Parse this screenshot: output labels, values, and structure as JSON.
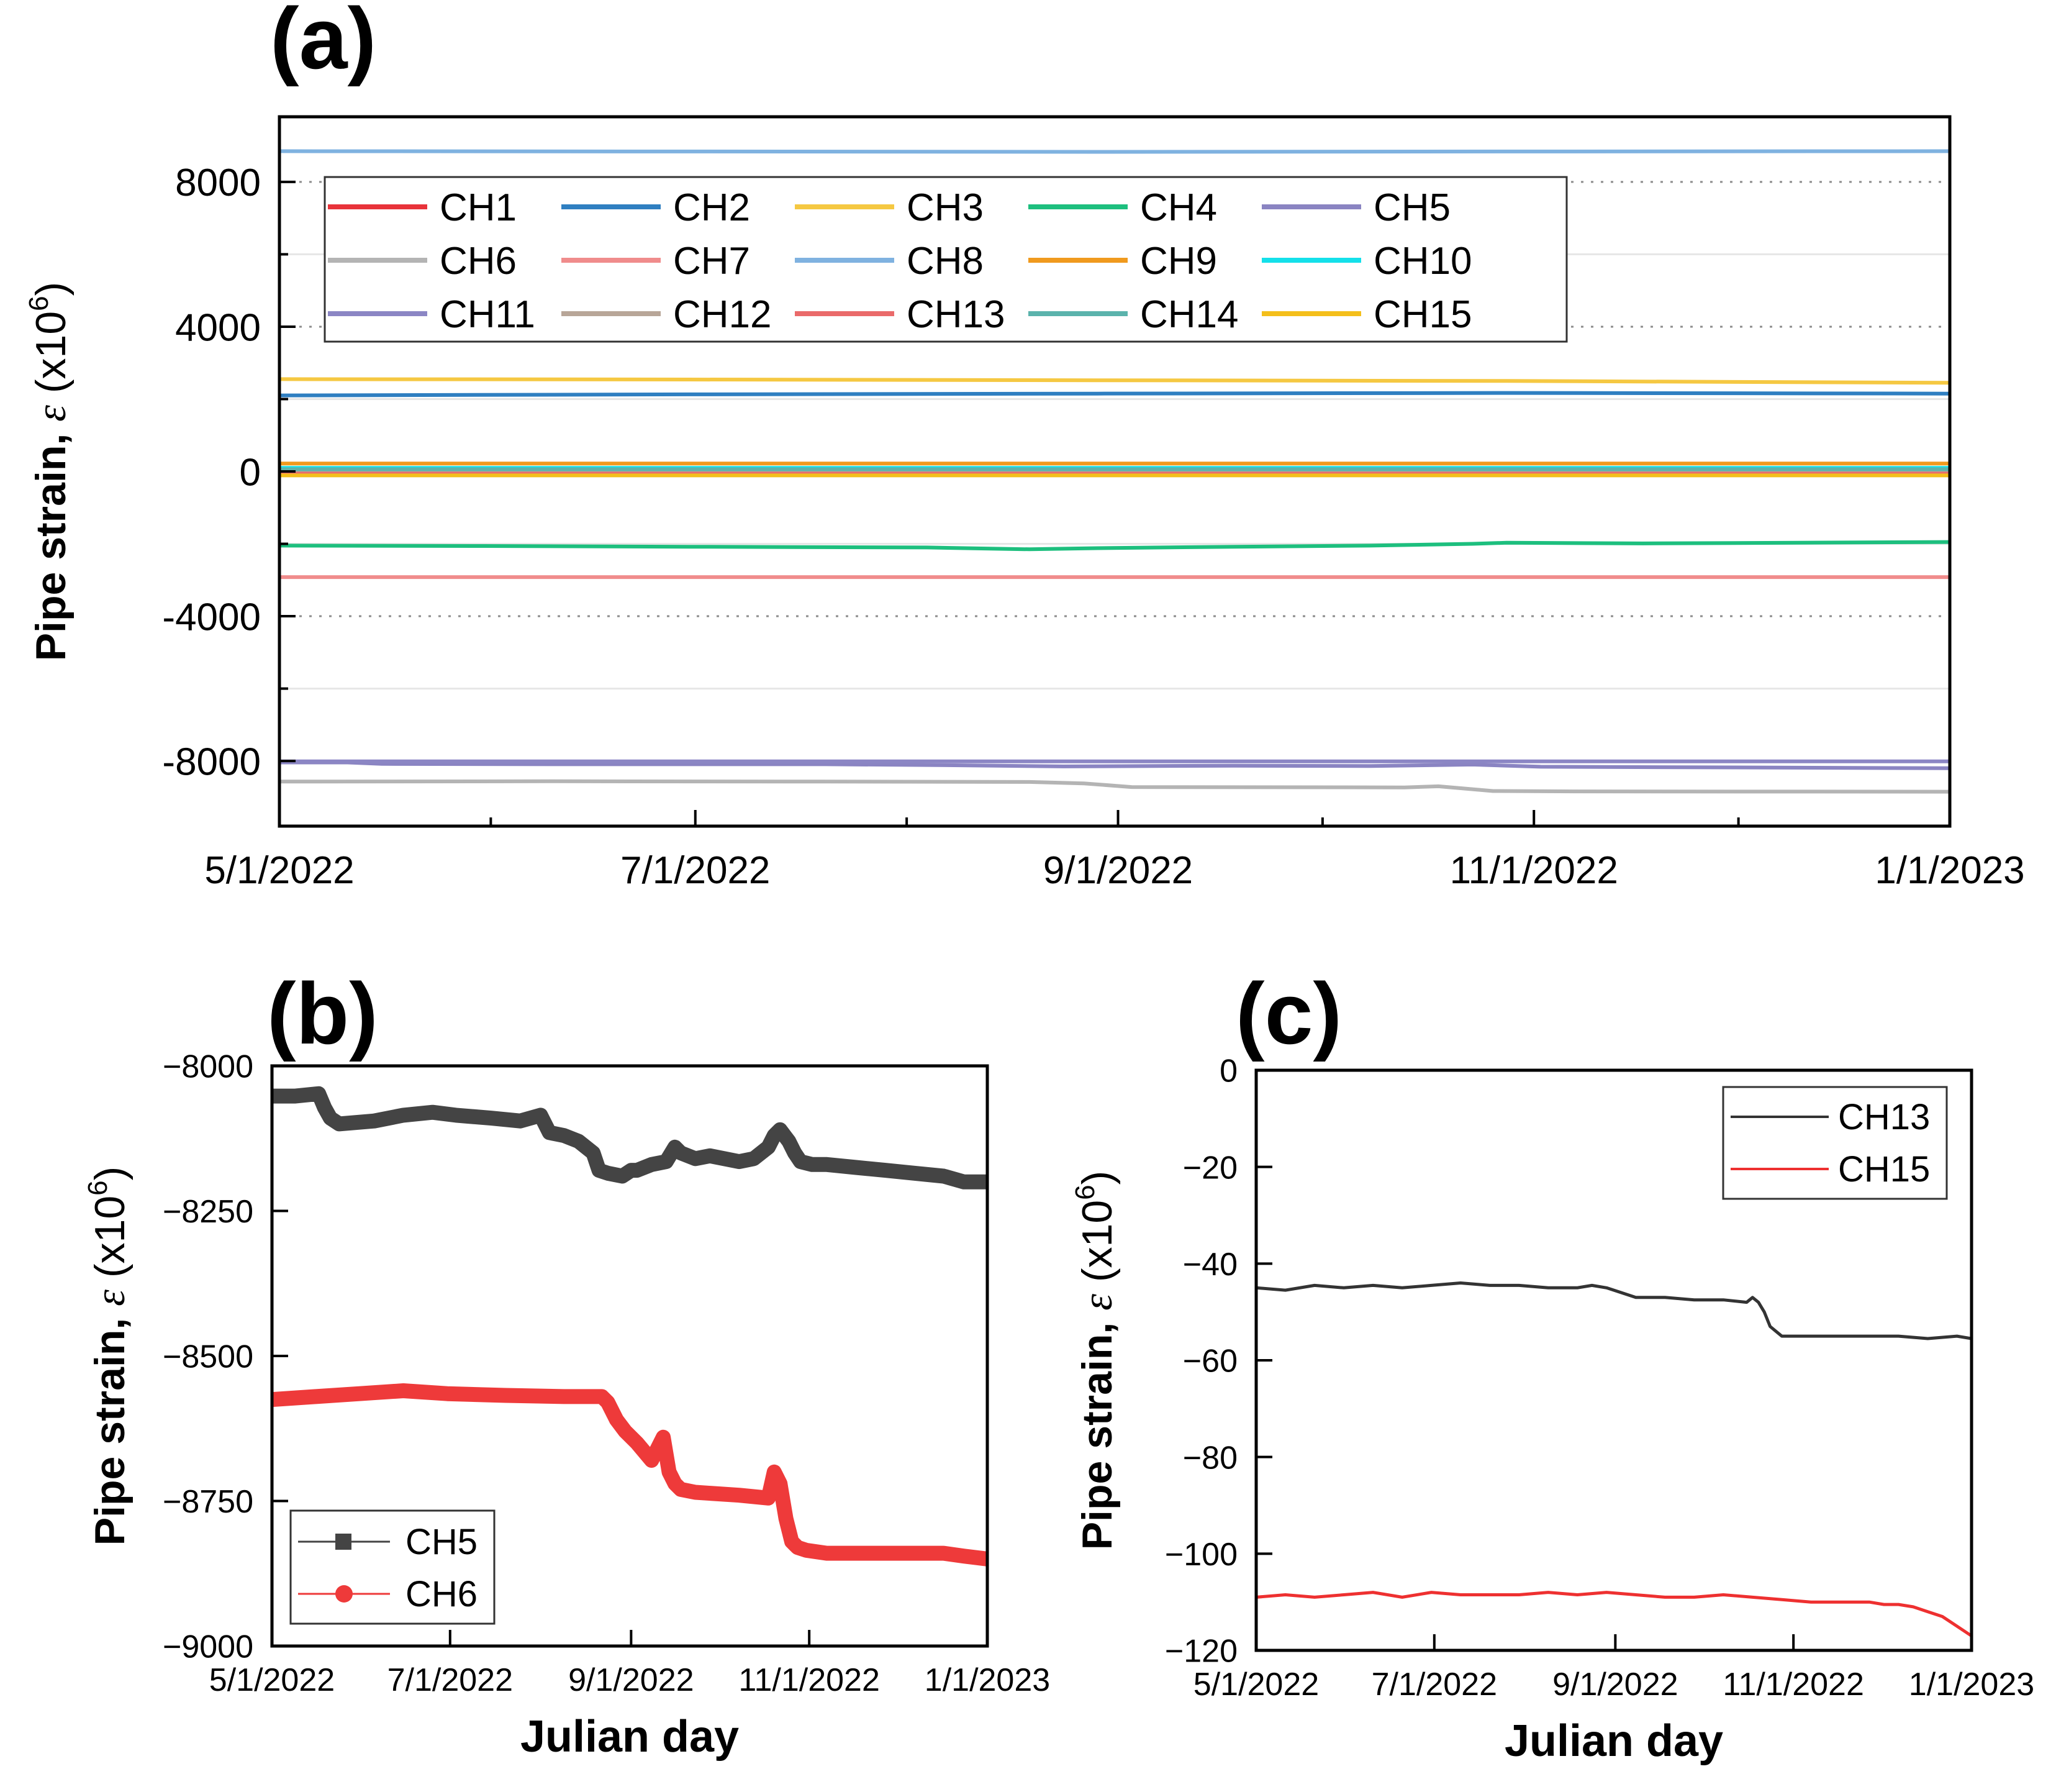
{
  "chart_data": [
    {
      "panel_label": "(a)",
      "type": "line",
      "xlabel": "",
      "ylabel_main": "Pipe strain, ",
      "ylabel_symbol": "ε",
      "ylabel_unit": " (x10",
      "ylabel_exp": "6",
      "ylabel_close": ")",
      "xlim": [
        0,
        245
      ],
      "ylim": [
        -9800,
        9800
      ],
      "x_ticks": [
        0,
        61,
        123,
        184,
        245
      ],
      "x_tick_labels": [
        "5/1/2022",
        "7/1/2022",
        "9/1/2022",
        "11/1/2022",
        "1/1/2023"
      ],
      "x_minor_ticks": [
        31,
        92,
        153,
        214
      ],
      "y_ticks": [
        -8000,
        -4000,
        0,
        4000,
        8000
      ],
      "y_tick_labels": [
        "-8000",
        "-4000",
        "0",
        "4000",
        "8000"
      ],
      "y_minor_ticks": [
        -6000,
        -2000,
        2000,
        6000
      ],
      "dotted_grid": [
        -8000,
        -4000,
        4000,
        8000
      ],
      "light_grid": [
        -6000,
        -2000,
        2000,
        6000
      ],
      "legend_position": "top-left",
      "legend_columns": 5,
      "series": [
        {
          "name": "CH1",
          "color": "#e8333a",
          "x": [
            0,
            245
          ],
          "y": [
            30,
            30
          ]
        },
        {
          "name": "CH2",
          "color": "#2f7fc1",
          "x": [
            0,
            60,
            120,
            180,
            245
          ],
          "y": [
            2100,
            2130,
            2150,
            2170,
            2150
          ]
        },
        {
          "name": "CH3",
          "color": "#f5c842",
          "x": [
            0,
            60,
            120,
            180,
            245
          ],
          "y": [
            2550,
            2540,
            2520,
            2500,
            2450
          ]
        },
        {
          "name": "CH4",
          "color": "#1dbf7e",
          "x": [
            0,
            30,
            60,
            95,
            110,
            120,
            140,
            160,
            175,
            180,
            200,
            245
          ],
          "y": [
            -2050,
            -2060,
            -2080,
            -2100,
            -2150,
            -2120,
            -2080,
            -2050,
            -2000,
            -1970,
            -1990,
            -1950
          ]
        },
        {
          "name": "CH5",
          "color": "#8a84c2",
          "x": [
            0,
            10,
            15,
            40,
            80,
            100,
            115,
            140,
            160,
            175,
            185,
            245
          ],
          "y": [
            -8040,
            -8040,
            -8080,
            -8090,
            -8090,
            -8120,
            -8150,
            -8130,
            -8140,
            -8100,
            -8160,
            -8200
          ]
        },
        {
          "name": "CH6",
          "color": "#b4b4b4",
          "x": [
            0,
            40,
            80,
            110,
            118,
            125,
            165,
            170,
            178,
            190,
            245
          ],
          "y": [
            -8570,
            -8560,
            -8570,
            -8580,
            -8620,
            -8720,
            -8730,
            -8700,
            -8830,
            -8840,
            -8850
          ]
        },
        {
          "name": "CH7",
          "color": "#f08c8c",
          "x": [
            0,
            245
          ],
          "y": [
            -2920,
            -2920
          ]
        },
        {
          "name": "CH8",
          "color": "#7fb2e0",
          "x": [
            0,
            60,
            120,
            180,
            245
          ],
          "y": [
            8850,
            8840,
            8830,
            8840,
            8850
          ]
        },
        {
          "name": "CH9",
          "color": "#f09a1e",
          "x": [
            0,
            245
          ],
          "y": [
            220,
            220
          ]
        },
        {
          "name": "CH10",
          "color": "#14e0ea",
          "x": [
            0,
            245
          ],
          "y": [
            100,
            100
          ]
        },
        {
          "name": "CH11",
          "color": "#8b86c4",
          "x": [
            0,
            245
          ],
          "y": [
            -8010,
            -8010
          ]
        },
        {
          "name": "CH12",
          "color": "#b8a698",
          "x": [
            0,
            245
          ],
          "y": [
            -20,
            -20
          ]
        },
        {
          "name": "CH13",
          "color": "#ea6a6a",
          "x": [
            0,
            245
          ],
          "y": [
            -60,
            -60
          ]
        },
        {
          "name": "CH14",
          "color": "#5bb3ac",
          "x": [
            0,
            245
          ],
          "y": [
            60,
            60
          ]
        },
        {
          "name": "CH15",
          "color": "#f4bf1b",
          "x": [
            0,
            245
          ],
          "y": [
            -110,
            -110
          ]
        }
      ]
    },
    {
      "panel_label": "(b)",
      "type": "line",
      "xlabel": "Julian day",
      "ylabel_main": "Pipe strain, ",
      "ylabel_symbol": "ε",
      "ylabel_unit": " (x10",
      "ylabel_exp": "6",
      "ylabel_close": ")",
      "xlim": [
        0,
        245
      ],
      "ylim": [
        -9000,
        -8000
      ],
      "x_ticks": [
        0,
        61,
        123,
        184,
        245
      ],
      "x_tick_labels": [
        "5/1/2022",
        "7/1/2022",
        "9/1/2022",
        "11/1/2022",
        "1/1/2023"
      ],
      "y_ticks": [
        -9000,
        -8750,
        -8500,
        -8250,
        -8000
      ],
      "y_tick_labels": [
        "−9000",
        "−8750",
        "−8500",
        "−8250",
        "−8000"
      ],
      "legend_position": "bottom-left",
      "series": [
        {
          "name": "CH5",
          "color": "#444444",
          "marker": "square",
          "x": [
            0,
            8,
            16,
            18,
            20,
            23,
            35,
            45,
            55,
            63,
            75,
            85,
            92,
            95,
            100,
            105,
            110,
            112,
            115,
            120,
            123,
            125,
            130,
            135,
            138,
            140,
            145,
            150,
            160,
            165,
            170,
            172,
            174,
            177,
            179,
            181,
            185,
            190,
            200,
            210,
            220,
            230,
            237,
            245
          ],
          "y": [
            -8052,
            -8052,
            -8048,
            -8072,
            -8090,
            -8100,
            -8095,
            -8085,
            -8080,
            -8085,
            -8090,
            -8095,
            -8085,
            -8115,
            -8120,
            -8130,
            -8150,
            -8180,
            -8185,
            -8190,
            -8180,
            -8180,
            -8170,
            -8165,
            -8140,
            -8150,
            -8160,
            -8155,
            -8165,
            -8160,
            -8140,
            -8120,
            -8110,
            -8130,
            -8150,
            -8165,
            -8170,
            -8170,
            -8175,
            -8180,
            -8185,
            -8190,
            -8200,
            -8200
          ]
        },
        {
          "name": "CH6",
          "color": "#ee3a3a",
          "marker": "circle",
          "x": [
            0,
            15,
            30,
            45,
            60,
            80,
            100,
            113,
            115,
            118,
            121,
            125,
            130,
            134,
            136,
            138,
            140,
            145,
            160,
            170,
            172,
            174,
            176,
            178,
            180,
            183,
            190,
            200,
            210,
            220,
            230,
            237,
            245
          ],
          "y": [
            -8575,
            -8570,
            -8565,
            -8560,
            -8565,
            -8568,
            -8570,
            -8570,
            -8580,
            -8610,
            -8630,
            -8650,
            -8680,
            -8640,
            -8700,
            -8720,
            -8730,
            -8735,
            -8740,
            -8745,
            -8700,
            -8720,
            -8780,
            -8820,
            -8830,
            -8835,
            -8840,
            -8840,
            -8840,
            -8840,
            -8840,
            -8845,
            -8850
          ]
        }
      ]
    },
    {
      "panel_label": "(c)",
      "type": "line",
      "xlabel": "Julian day",
      "ylabel_main": "Pipe strain, ",
      "ylabel_symbol": "ε",
      "ylabel_unit": " (x10",
      "ylabel_exp": "6",
      "ylabel_close": ")",
      "xlim": [
        0,
        245
      ],
      "ylim": [
        -120,
        0
      ],
      "x_ticks": [
        0,
        61,
        123,
        184,
        245
      ],
      "x_tick_labels": [
        "5/1/2022",
        "7/1/2022",
        "9/1/2022",
        "11/1/2022",
        "1/1/2023"
      ],
      "y_ticks": [
        -120,
        -100,
        -80,
        -60,
        -40,
        -20,
        0
      ],
      "y_tick_labels": [
        "−120",
        "−100",
        "−80",
        "−60",
        "−40",
        "−20",
        "0"
      ],
      "legend_position": "top-right",
      "series": [
        {
          "name": "CH13",
          "color": "#333333",
          "x": [
            0,
            10,
            20,
            30,
            40,
            50,
            60,
            70,
            80,
            90,
            100,
            110,
            115,
            120,
            125,
            130,
            140,
            150,
            160,
            168,
            170,
            172,
            174,
            176,
            178,
            180,
            185,
            190,
            200,
            210,
            220,
            230,
            240,
            245
          ],
          "y": [
            -45,
            -45.5,
            -44.5,
            -45,
            -44.5,
            -45,
            -44.5,
            -44,
            -44.5,
            -44.5,
            -45,
            -45,
            -44.5,
            -45,
            -46,
            -47,
            -47,
            -47.5,
            -47.5,
            -48,
            -47,
            -48,
            -50,
            -53,
            -54,
            -55,
            -55,
            -55,
            -55,
            -55,
            -55,
            -55.5,
            -55,
            -55.5
          ]
        },
        {
          "name": "CH15",
          "color": "#ee3030",
          "x": [
            0,
            10,
            20,
            30,
            40,
            50,
            60,
            70,
            80,
            90,
            100,
            110,
            120,
            130,
            140,
            150,
            160,
            170,
            180,
            190,
            200,
            210,
            215,
            220,
            225,
            230,
            235,
            240,
            245
          ],
          "y": [
            -109,
            -108.5,
            -109,
            -108.5,
            -108,
            -109,
            -108,
            -108.5,
            -108.5,
            -108.5,
            -108,
            -108.5,
            -108,
            -108.5,
            -109,
            -109,
            -108.5,
            -109,
            -109.5,
            -110,
            -110,
            -110,
            -110.5,
            -110.5,
            -111,
            -112,
            -113,
            -115,
            -117
          ]
        }
      ]
    }
  ]
}
